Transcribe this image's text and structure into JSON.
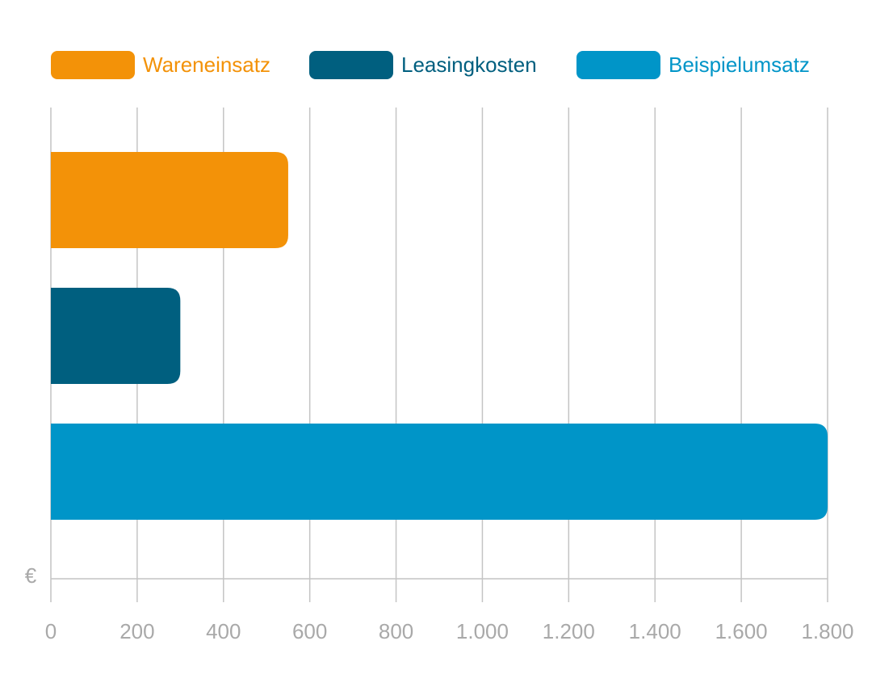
{
  "chart_data": {
    "type": "bar",
    "orientation": "horizontal",
    "series": [
      {
        "name": "Wareneinsatz",
        "color": "#f39208",
        "values": [
          550
        ]
      },
      {
        "name": "Leasingkosten",
        "color": "#005f7f",
        "values": [
          300
        ]
      },
      {
        "name": "Beispielumsatz",
        "color": "#0095c8",
        "values": [
          1800
        ]
      }
    ],
    "xlim": [
      0,
      1800
    ],
    "xticks": [
      0,
      200,
      400,
      600,
      800,
      {
        "value": 1000,
        "label": "1.000"
      },
      {
        "value": 1200,
        "label": "1.200"
      },
      {
        "value": 1400,
        "label": "1.400"
      },
      {
        "value": 1600,
        "label": "1.600"
      },
      {
        "value": 1800,
        "label": "1.800"
      }
    ],
    "unit_label": "€",
    "grid": true,
    "legend": "top"
  }
}
